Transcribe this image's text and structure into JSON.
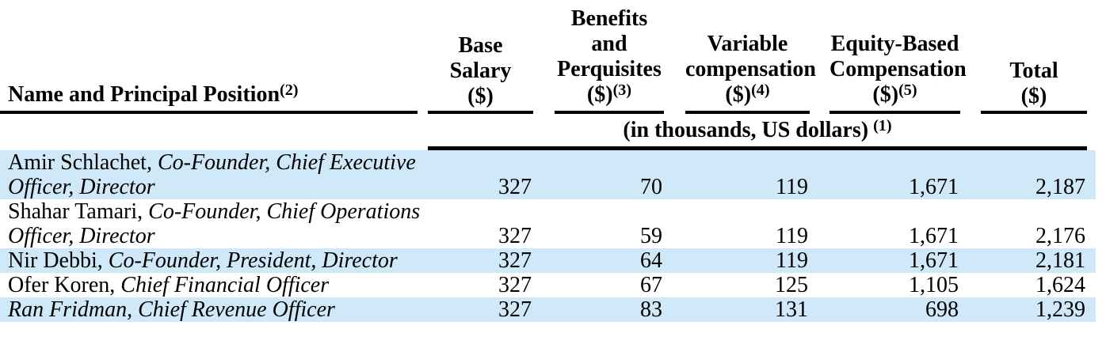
{
  "table": {
    "units_note": {
      "text": "(in thousands, US dollars)",
      "sup": "(1)"
    },
    "columns": [
      {
        "id": "name-and-principal-position",
        "lines": [
          {
            "text": "Name and Principal Position",
            "sup": "(2)"
          }
        ]
      },
      {
        "id": "base-salary",
        "lines": [
          {
            "text": "Base"
          },
          {
            "text": "Salary"
          },
          {
            "text": "($)"
          }
        ]
      },
      {
        "id": "benefits-and-perquisites",
        "lines": [
          {
            "text": "Benefits"
          },
          {
            "text": "and"
          },
          {
            "text": "Perquisites"
          },
          {
            "text": "($)",
            "sup": "(3)"
          }
        ]
      },
      {
        "id": "variable-compensation",
        "lines": [
          {
            "text": "Variable"
          },
          {
            "text": "compensation"
          },
          {
            "text": "($)",
            "sup": "(4)"
          }
        ]
      },
      {
        "id": "equity-based-compensation",
        "lines": [
          {
            "text": "Equity-Based"
          },
          {
            "text": "Compensation"
          },
          {
            "text": "($)",
            "sup": "(5)"
          }
        ]
      },
      {
        "id": "total",
        "lines": [
          {
            "text": "Total"
          },
          {
            "text": "($)"
          }
        ]
      }
    ],
    "rows": [
      {
        "name": "Amir Schlachet,",
        "name_italic": false,
        "position_line1": "Co-Founder, Chief Executive",
        "position_line2": "Officer, Director",
        "highlighted": true,
        "values": [
          "327",
          "70",
          "119",
          "1,671",
          "2,187"
        ]
      },
      {
        "name": "Shahar Tamari,",
        "name_italic": false,
        "position_line1": "Co-Founder, Chief Operations",
        "position_line2": "Officer, Director",
        "highlighted": false,
        "values": [
          "327",
          "59",
          "119",
          "1,671",
          "2,176"
        ]
      },
      {
        "name": "Nir Debbi,",
        "name_italic": false,
        "position_line1": "Co-Founder, President, Director",
        "position_line2": "",
        "highlighted": true,
        "values": [
          "327",
          "64",
          "119",
          "1,671",
          "2,181"
        ]
      },
      {
        "name": "Ofer Koren,",
        "name_italic": false,
        "position_line1": "Chief Financial Officer",
        "position_line2": "",
        "highlighted": false,
        "values": [
          "327",
          "67",
          "125",
          "1,105",
          "1,624"
        ]
      },
      {
        "name": "Ran Fridman,",
        "name_italic": true,
        "position_line1": "Chief Revenue Officer",
        "position_line2": "",
        "highlighted": true,
        "values": [
          "327",
          "83",
          "131",
          "698",
          "1,239"
        ]
      }
    ],
    "colors": {
      "highlight": "#d0e9f8",
      "text": "#000000",
      "rule": "#000000"
    }
  }
}
